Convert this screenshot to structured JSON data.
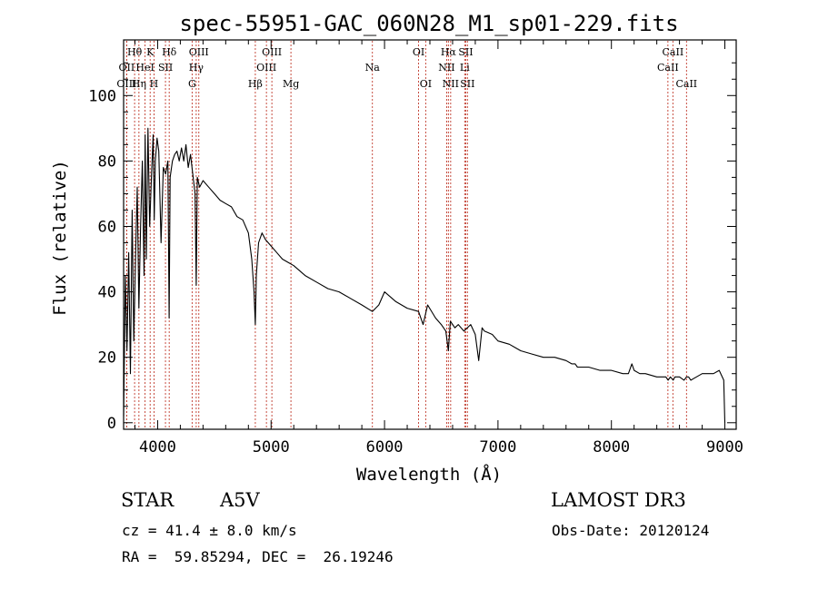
{
  "chart_data": {
    "type": "line",
    "title": "spec-55951-GAC_060N28_M1_sp01-229.fits",
    "xlabel": "Wavelength (Å)",
    "ylabel": "Flux (relative)",
    "xlim": [
      3700,
      9100
    ],
    "ylim": [
      -2,
      117
    ],
    "xticks": [
      4000,
      5000,
      6000,
      7000,
      8000,
      9000
    ],
    "yticks": [
      0,
      20,
      40,
      60,
      80,
      100
    ],
    "series": [
      {
        "name": "spectrum",
        "x": [
          3700,
          3715,
          3730,
          3745,
          3760,
          3775,
          3790,
          3805,
          3820,
          3835,
          3850,
          3865,
          3880,
          3890,
          3900,
          3915,
          3930,
          3945,
          3960,
          3970,
          3980,
          3995,
          4010,
          4030,
          4050,
          4070,
          4090,
          4101,
          4110,
          4130,
          4150,
          4170,
          4190,
          4210,
          4230,
          4250,
          4270,
          4290,
          4310,
          4330,
          4340,
          4350,
          4370,
          4400,
          4450,
          4500,
          4550,
          4600,
          4650,
          4700,
          4750,
          4800,
          4830,
          4850,
          4861,
          4870,
          4890,
          4920,
          4950,
          5000,
          5050,
          5100,
          5150,
          5200,
          5300,
          5400,
          5500,
          5600,
          5700,
          5800,
          5893,
          5950,
          6000,
          6100,
          6200,
          6300,
          6340,
          6380,
          6450,
          6500,
          6540,
          6563,
          6580,
          6620,
          6650,
          6700,
          6760,
          6800,
          6830,
          6860,
          6880,
          6950,
          7000,
          7100,
          7200,
          7300,
          7400,
          7500,
          7600,
          7650,
          7680,
          7700,
          7800,
          7900,
          8000,
          8100,
          8150,
          8180,
          8200,
          8250,
          8300,
          8400,
          8480,
          8500,
          8520,
          8545,
          8560,
          8580,
          8600,
          8640,
          8662,
          8680,
          8700,
          8750,
          8800,
          8850,
          8900,
          8950,
          8990,
          9000
        ],
        "y": [
          2,
          45,
          22,
          52,
          15,
          65,
          25,
          50,
          72,
          35,
          60,
          80,
          45,
          88,
          50,
          90,
          60,
          75,
          88,
          62,
          80,
          87,
          83,
          55,
          78,
          76,
          80,
          32,
          75,
          80,
          82,
          83,
          80,
          84,
          80,
          85,
          78,
          82,
          76,
          70,
          42,
          75,
          72,
          74,
          72,
          70,
          68,
          67,
          66,
          63,
          62,
          58,
          50,
          40,
          30,
          45,
          55,
          58,
          56,
          54,
          52,
          50,
          49,
          48,
          45,
          43,
          41,
          40,
          38,
          36,
          34,
          36,
          40,
          37,
          35,
          34,
          30,
          36,
          32,
          30,
          28,
          22,
          31,
          29,
          30,
          28,
          30,
          27,
          19,
          29,
          28,
          27,
          25,
          24,
          22,
          21,
          20,
          20,
          19,
          18,
          18,
          17,
          17,
          16,
          16,
          15,
          15,
          18,
          16,
          15,
          15,
          14,
          14,
          13,
          14,
          13,
          14,
          14,
          14,
          13,
          14,
          14,
          13,
          14,
          15,
          15,
          15,
          16,
          13,
          0
        ]
      }
    ],
    "lines": [
      {
        "label": "Hθ",
        "wave": 3797,
        "row": 1
      },
      {
        "label": "OII",
        "wave": 3727,
        "row": 2
      },
      {
        "label": "OIII",
        "wave": 3727,
        "row": 3
      },
      {
        "label": "K",
        "wave": 3934,
        "row": 1
      },
      {
        "label": "HeI",
        "wave": 3889,
        "row": 2
      },
      {
        "label": "Hη",
        "wave": 3835,
        "row": 3
      },
      {
        "label": "Hδ",
        "wave": 4102,
        "row": 1
      },
      {
        "label": "SII",
        "wave": 4069,
        "row": 2
      },
      {
        "label": "H",
        "wave": 3968,
        "row": 3
      },
      {
        "label": "OIII",
        "wave": 4363,
        "row": 1
      },
      {
        "label": "Hγ",
        "wave": 4340,
        "row": 2
      },
      {
        "label": "G",
        "wave": 4304,
        "row": 3
      },
      {
        "label": "Hβ",
        "wave": 4861,
        "row": 3
      },
      {
        "label": "OIII",
        "wave": 5007,
        "row": 1
      },
      {
        "label": "OIII",
        "wave": 4959,
        "row": 2
      },
      {
        "label": "Mg",
        "wave": 5175,
        "row": 3
      },
      {
        "label": "Na",
        "wave": 5893,
        "row": 2
      },
      {
        "label": "OI",
        "wave": 6300,
        "row": 1
      },
      {
        "label": "OI",
        "wave": 6363,
        "row": 3
      },
      {
        "label": "Hα",
        "wave": 6563,
        "row": 1
      },
      {
        "label": "NII",
        "wave": 6548,
        "row": 2
      },
      {
        "label": "NII",
        "wave": 6583,
        "row": 3
      },
      {
        "label": "SII",
        "wave": 6716,
        "row": 1
      },
      {
        "label": "Li",
        "wave": 6707,
        "row": 2
      },
      {
        "label": "SII",
        "wave": 6731,
        "row": 3
      },
      {
        "label": "CaII",
        "wave": 8542,
        "row": 1
      },
      {
        "label": "CaII",
        "wave": 8498,
        "row": 2
      },
      {
        "label": "CaII",
        "wave": 8662,
        "row": 3
      }
    ]
  },
  "info": {
    "object_class": "STAR",
    "subclass": "A5V",
    "survey": "LAMOST DR3",
    "redshift": "cz = 41.4 ± 8.0 km/s",
    "obs_date": "Obs-Date: 20120124",
    "coords": "RA =  59.85294, DEC =  26.19246"
  }
}
